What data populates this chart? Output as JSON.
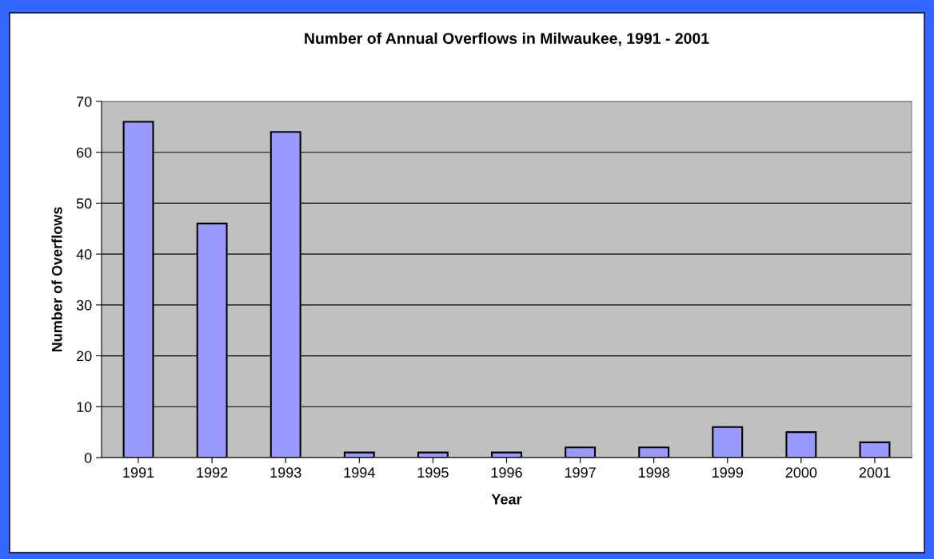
{
  "chart_data": {
    "type": "bar",
    "title": "Number of Annual Overflows in Milwaukee, 1991 - 2001",
    "xlabel": "Year",
    "ylabel": "Number of Overflows",
    "categories": [
      "1991",
      "1992",
      "1993",
      "1994",
      "1995",
      "1996",
      "1997",
      "1998",
      "1999",
      "2000",
      "2001"
    ],
    "values": [
      66,
      46,
      64,
      1,
      1,
      1,
      2,
      2,
      6,
      5,
      3
    ],
    "color": "#9999ff",
    "ylim": [
      0,
      70
    ],
    "yticks": [
      0,
      10,
      20,
      30,
      40,
      50,
      60,
      70
    ],
    "grid": "y"
  }
}
